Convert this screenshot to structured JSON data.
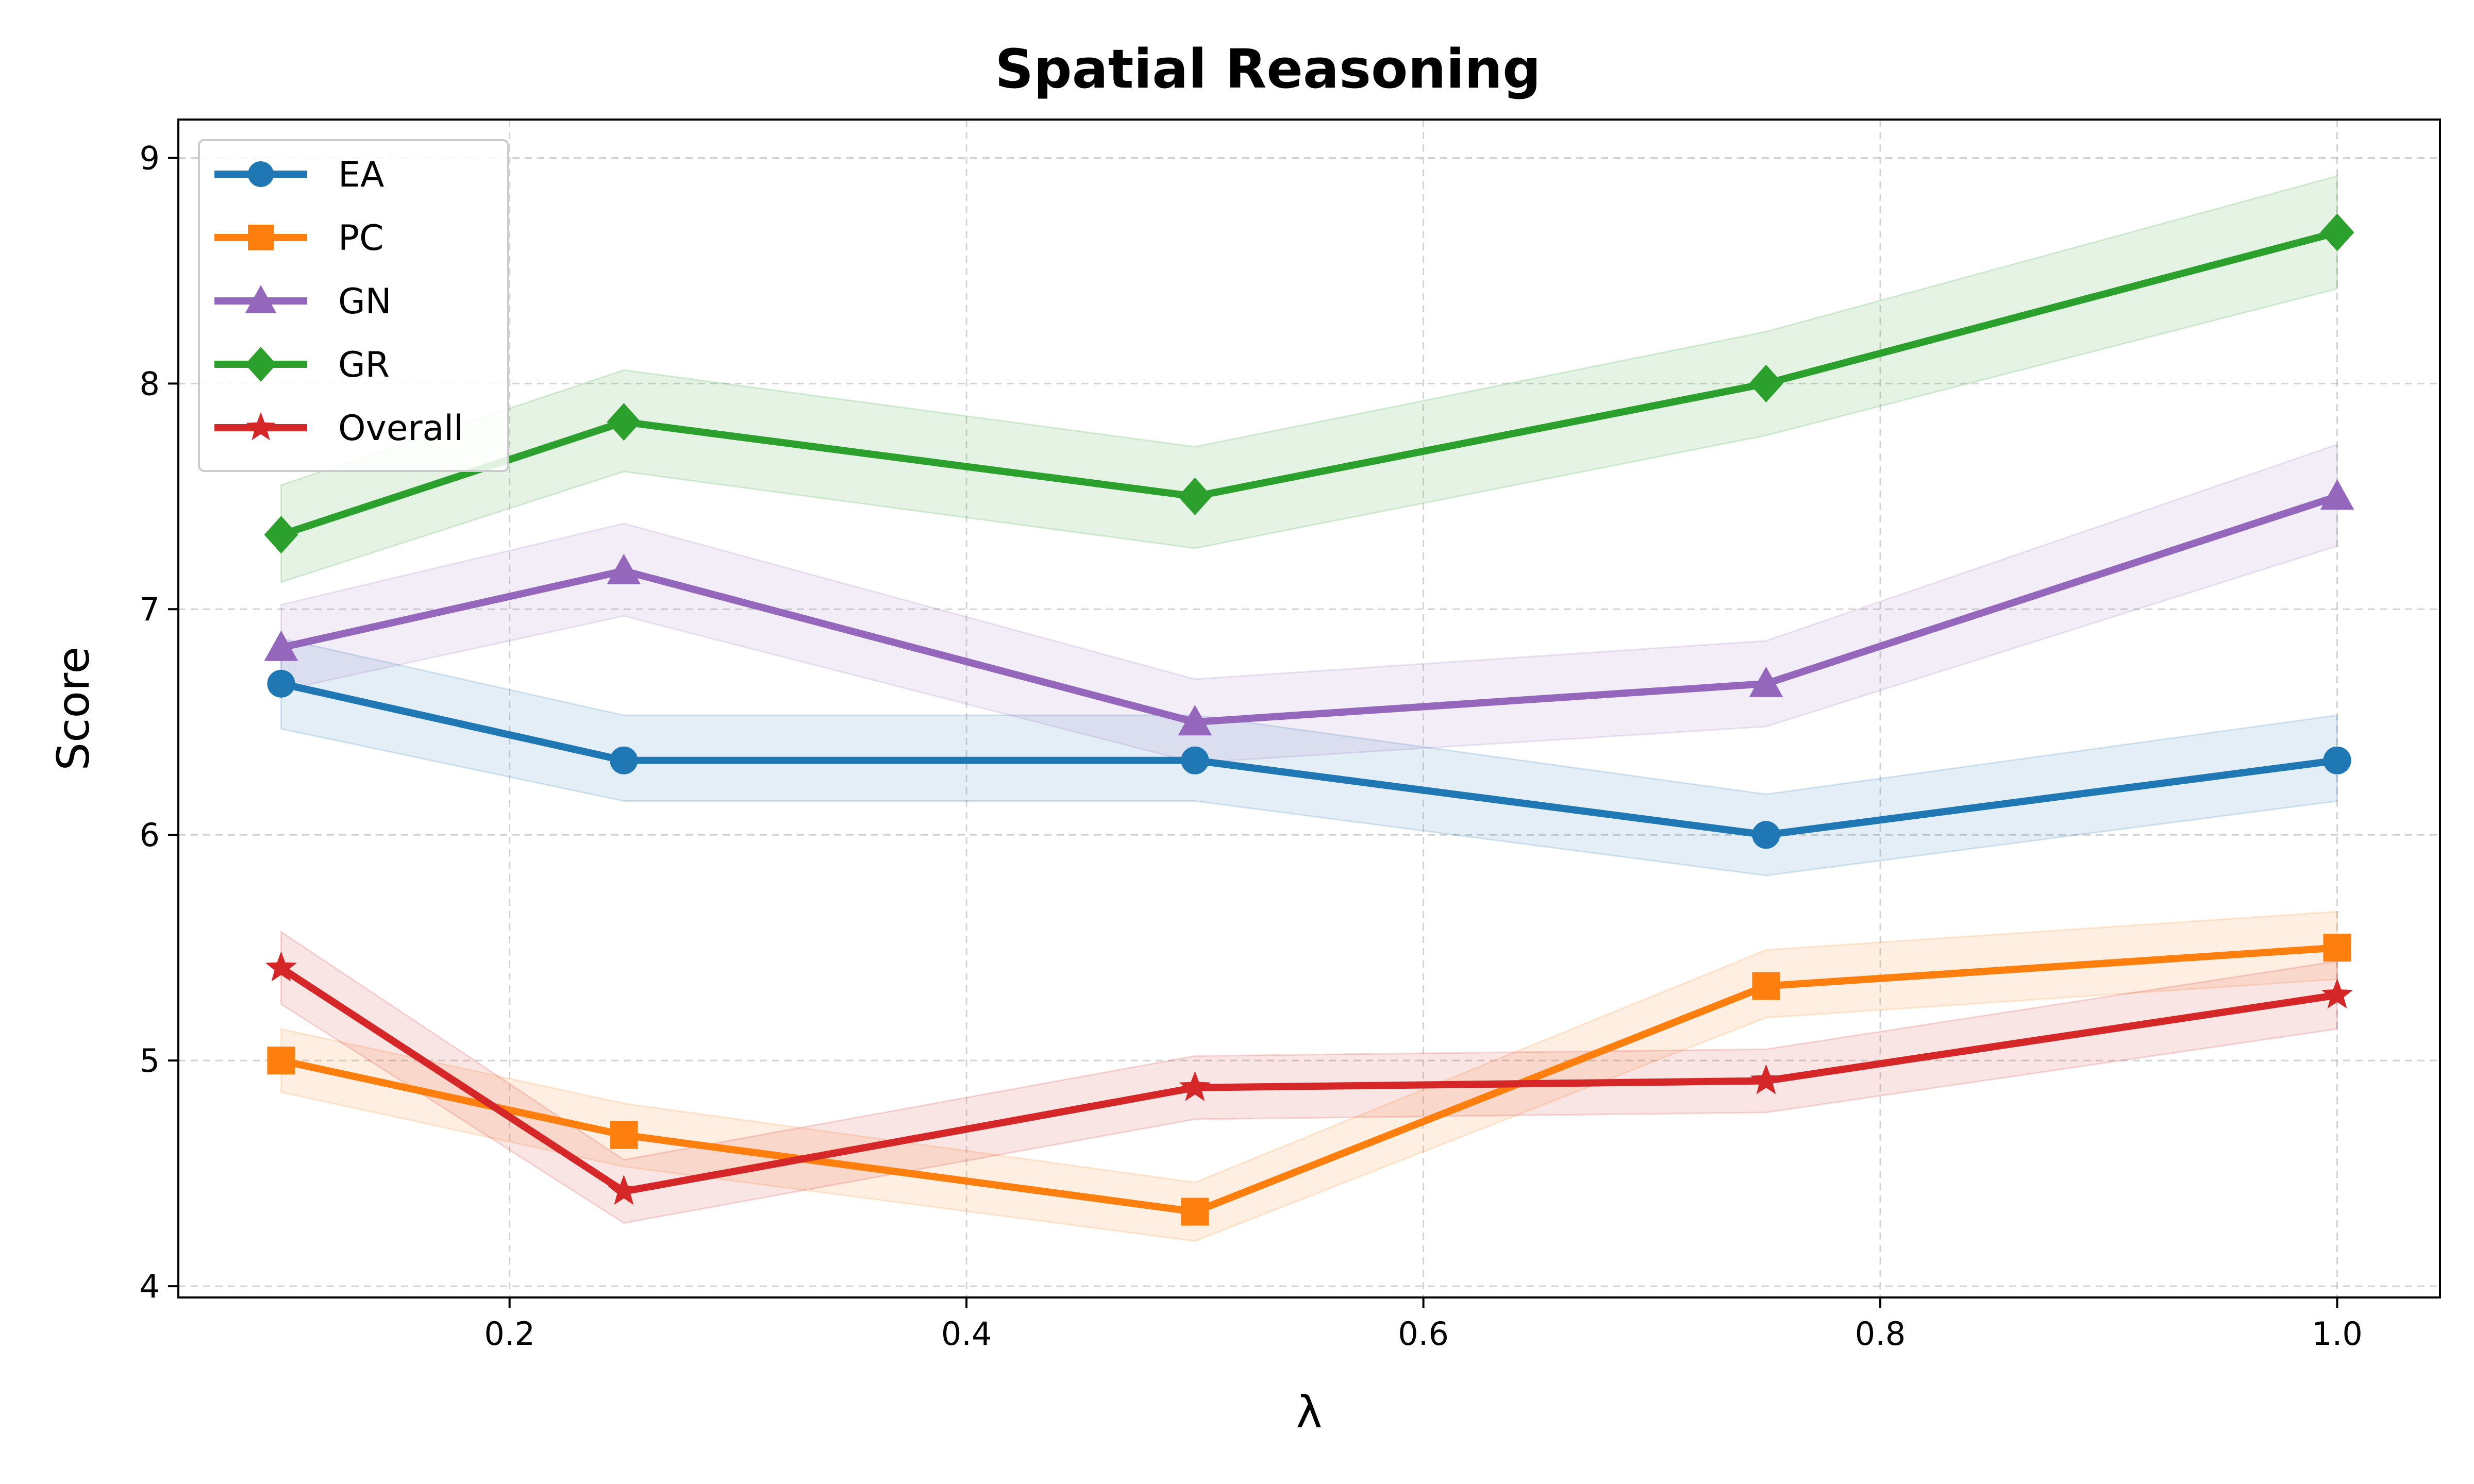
{
  "chart_data": {
    "type": "line",
    "title": "Spatial Reasoning",
    "xlabel": "λ",
    "ylabel": "Score",
    "xlim": [
      0.055,
      1.045
    ],
    "ylim": [
      3.95,
      9.17
    ],
    "xticks": [
      0.2,
      0.4,
      0.6,
      0.8,
      1.0
    ],
    "xtick_labels": [
      "0.2",
      "0.4",
      "0.6",
      "0.8",
      "1.0"
    ],
    "yticks": [
      4,
      5,
      6,
      7,
      8,
      9
    ],
    "ytick_labels": [
      "4",
      "5",
      "6",
      "7",
      "8",
      "9"
    ],
    "grid": true,
    "legend_position": "top-left",
    "x": [
      0.1,
      0.25,
      0.5,
      0.75,
      1.0
    ],
    "series": [
      {
        "name": "EA",
        "marker": "circle",
        "color": "#1f77b4",
        "values": [
          6.67,
          6.33,
          6.33,
          6.0,
          6.33
        ],
        "band_lower": [
          6.47,
          6.15,
          6.15,
          5.82,
          6.15
        ],
        "band_upper": [
          6.87,
          6.53,
          6.53,
          6.18,
          6.53
        ]
      },
      {
        "name": "PC",
        "marker": "square",
        "color": "#ff7f0e",
        "values": [
          5.0,
          4.67,
          4.33,
          5.33,
          5.5
        ],
        "band_lower": [
          4.86,
          4.53,
          4.2,
          5.19,
          5.36
        ],
        "band_upper": [
          5.14,
          4.81,
          4.46,
          5.49,
          5.66
        ]
      },
      {
        "name": "GN",
        "marker": "triangle",
        "color": "#9467bd",
        "values": [
          6.83,
          7.17,
          6.5,
          6.67,
          7.5
        ],
        "band_lower": [
          6.64,
          6.97,
          6.32,
          6.48,
          7.28
        ],
        "band_upper": [
          7.02,
          7.38,
          6.69,
          6.86,
          7.73
        ]
      },
      {
        "name": "GR",
        "marker": "diamond",
        "color": "#2ca02c",
        "values": [
          7.33,
          7.83,
          7.5,
          8.0,
          8.67
        ],
        "band_lower": [
          7.12,
          7.61,
          7.27,
          7.77,
          8.42
        ],
        "band_upper": [
          7.55,
          8.06,
          7.72,
          8.23,
          8.92
        ]
      },
      {
        "name": "Overall",
        "marker": "star",
        "color": "#d62728",
        "values": [
          5.41,
          4.42,
          4.88,
          4.91,
          5.29
        ],
        "band_lower": [
          5.25,
          4.28,
          4.74,
          4.77,
          5.14
        ],
        "band_upper": [
          5.57,
          4.56,
          5.02,
          5.05,
          5.44
        ]
      }
    ]
  }
}
